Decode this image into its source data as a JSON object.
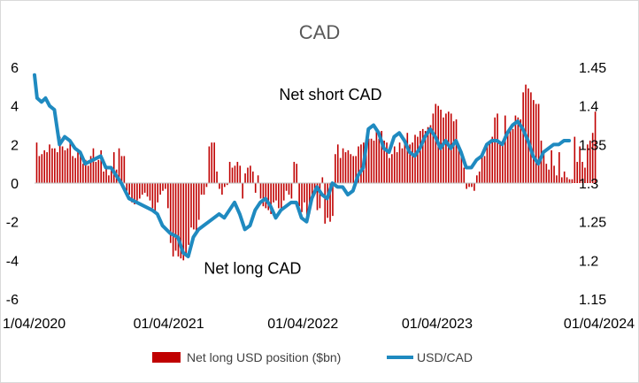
{
  "chart_data": {
    "type": "bar+line",
    "title": "CAD",
    "colors": {
      "bars": "#c00000",
      "line": "#1f8ac0",
      "zero_line": "#bfbfbf",
      "title": "#595959"
    },
    "left_axis": {
      "ylim": [
        -6,
        6
      ],
      "ticks": [
        "6",
        "4",
        "2",
        "0",
        "-2",
        "-4",
        "-6"
      ],
      "tick_values": [
        6,
        4,
        2,
        0,
        -2,
        -4,
        -6
      ]
    },
    "right_axis": {
      "ylim": [
        1.15,
        1.45
      ],
      "ticks": [
        "1.45",
        "1.4",
        "1.35",
        "1.3",
        "1.25",
        "1.2",
        "1.15"
      ],
      "tick_values": [
        1.45,
        1.4,
        1.35,
        1.3,
        1.25,
        1.2,
        1.15
      ]
    },
    "x_axis": {
      "xlim": [
        "2020-04-01",
        "2024-04-01"
      ],
      "tick_labels": [
        "1/04/2020",
        "01/04/2021",
        "01/04/2022",
        "01/04/2023",
        "01/04/2024"
      ],
      "tick_dates": [
        "2020-04-01",
        "2021-04-01",
        "2022-04-01",
        "2023-04-01",
        "2024-04-01"
      ]
    },
    "annotations": [
      {
        "text": "Net short CAD",
        "date": "2022-06-15",
        "value": 4.3
      },
      {
        "text": "Net long CAD",
        "date": "2021-11-15",
        "value": -4.7
      }
    ],
    "legend": {
      "placement": "bottom",
      "entries": [
        "Net long USD position ($bn)",
        "USD/CAD"
      ]
    },
    "series": [
      {
        "name": "Net long USD position ($bn)",
        "type": "bar",
        "axis": "left",
        "start_date": "2020-04-07",
        "frequency_days": 7,
        "values": [
          2.1,
          1.4,
          1.5,
          1.7,
          1.6,
          2.0,
          1.8,
          1.8,
          1.6,
          2.4,
          1.9,
          1.7,
          1.8,
          2.2,
          1.4,
          1.3,
          1.6,
          1.5,
          1.0,
          1.2,
          0.9,
          1.4,
          1.8,
          1.1,
          1.2,
          1.7,
          0.6,
          0.9,
          0.4,
          0.7,
          1.6,
          0.7,
          1.8,
          1.4,
          1.4,
          -0.4,
          -0.6,
          -1.0,
          -1.1,
          -0.9,
          -0.8,
          -0.6,
          -0.5,
          -0.7,
          -0.9,
          -1.3,
          -1.5,
          -1.0,
          -0.6,
          -0.4,
          -0.3,
          -1.3,
          -3.1,
          -3.8,
          -3.5,
          -3.8,
          -3.9,
          -4.0,
          -3.7,
          -3.2,
          -2.3,
          -2.4,
          -2.5,
          -1.9,
          -0.6,
          -0.6,
          -0.2,
          1.9,
          2.1,
          2.1,
          0.6,
          -0.3,
          -0.6,
          -0.2,
          -0.1,
          1.1,
          0.8,
          0.9,
          1.1,
          0.9,
          -0.8,
          0.5,
          0.8,
          0.9,
          0.6,
          -0.5,
          0.4,
          -0.8,
          -1.2,
          -1.3,
          -1.4,
          -1.6,
          -1.0,
          -0.9,
          -1.3,
          -1.4,
          -0.9,
          -0.4,
          -0.6,
          -0.8,
          1.1,
          1.0,
          -1.2,
          -1.5,
          -1.0,
          -1.8,
          -1.6,
          -0.8,
          -0.3,
          -1.4,
          -1.3,
          0.3,
          -2.1,
          -1.8,
          -2.0,
          -1.7,
          1.5,
          2.0,
          1.3,
          1.8,
          1.6,
          1.7,
          1.5,
          1.4,
          1.4,
          1.9,
          2.0,
          2.1,
          1.8,
          2.3,
          2.3,
          2.2,
          2.8,
          2.3,
          2.7,
          2.2,
          2.1,
          1.3,
          1.5,
          1.9,
          1.6,
          2.1,
          1.8,
          2.3,
          2.6,
          2.0,
          2.1,
          2.5,
          2.4,
          2.7,
          2.8,
          2.7,
          2.9,
          3.0,
          3.6,
          4.1,
          4.0,
          3.8,
          3.4,
          3.6,
          3.7,
          3.6,
          3.2,
          3.3,
          1.8,
          1.4,
          0.8,
          -0.3,
          -0.2,
          -0.2,
          -0.4,
          0.4,
          0.6,
          1.4,
          1.4,
          2.1,
          2.1,
          2.4,
          3.4,
          3.6,
          2.0,
          2.2,
          3.5,
          2.5,
          2.8,
          2.8,
          3.5,
          3.4,
          3.3,
          4.7,
          5.1,
          4.9,
          4.7,
          4.3,
          4.1,
          4.1,
          2.2,
          1.7,
          1.0,
          0.7,
          1.7,
          0.9,
          0.4,
          1.6,
          0.3,
          0.6,
          0.3,
          0.2,
          0.2,
          2.4,
          1.1,
          1.9,
          1.1,
          0.8,
          2.0,
          2.2,
          2.6,
          3.7
        ]
      },
      {
        "name": "USD/CAD",
        "type": "line",
        "axis": "right",
        "points": [
          [
            "2020-04-01",
            1.44
          ],
          [
            "2020-04-08",
            1.41
          ],
          [
            "2020-04-20",
            1.405
          ],
          [
            "2020-05-01",
            1.41
          ],
          [
            "2020-05-12",
            1.4
          ],
          [
            "2020-05-25",
            1.395
          ],
          [
            "2020-06-08",
            1.35
          ],
          [
            "2020-06-22",
            1.36
          ],
          [
            "2020-07-06",
            1.355
          ],
          [
            "2020-07-20",
            1.345
          ],
          [
            "2020-08-03",
            1.34
          ],
          [
            "2020-08-17",
            1.325
          ],
          [
            "2020-09-07",
            1.33
          ],
          [
            "2020-09-28",
            1.335
          ],
          [
            "2020-10-12",
            1.32
          ],
          [
            "2020-10-26",
            1.32
          ],
          [
            "2020-11-09",
            1.31
          ],
          [
            "2020-11-23",
            1.3
          ],
          [
            "2020-12-14",
            1.28
          ],
          [
            "2021-01-04",
            1.275
          ],
          [
            "2021-01-25",
            1.27
          ],
          [
            "2021-02-15",
            1.265
          ],
          [
            "2021-03-01",
            1.26
          ],
          [
            "2021-03-15",
            1.245
          ],
          [
            "2021-04-05",
            1.235
          ],
          [
            "2021-04-26",
            1.23
          ],
          [
            "2021-05-10",
            1.21
          ],
          [
            "2021-05-24",
            1.205
          ],
          [
            "2021-06-07",
            1.23
          ],
          [
            "2021-06-21",
            1.24
          ],
          [
            "2021-07-05",
            1.245
          ],
          [
            "2021-07-19",
            1.25
          ],
          [
            "2021-08-02",
            1.255
          ],
          [
            "2021-08-16",
            1.26
          ],
          [
            "2021-08-30",
            1.255
          ],
          [
            "2021-09-13",
            1.265
          ],
          [
            "2021-09-27",
            1.275
          ],
          [
            "2021-10-11",
            1.26
          ],
          [
            "2021-10-25",
            1.24
          ],
          [
            "2021-11-08",
            1.245
          ],
          [
            "2021-11-22",
            1.265
          ],
          [
            "2021-12-06",
            1.275
          ],
          [
            "2021-12-20",
            1.28
          ],
          [
            "2022-01-03",
            1.27
          ],
          [
            "2022-01-17",
            1.255
          ],
          [
            "2022-01-31",
            1.265
          ],
          [
            "2022-02-14",
            1.27
          ],
          [
            "2022-02-28",
            1.275
          ],
          [
            "2022-03-14",
            1.275
          ],
          [
            "2022-03-28",
            1.255
          ],
          [
            "2022-04-11",
            1.25
          ],
          [
            "2022-04-25",
            1.28
          ],
          [
            "2022-05-09",
            1.295
          ],
          [
            "2022-05-23",
            1.285
          ],
          [
            "2022-06-06",
            1.28
          ],
          [
            "2022-06-20",
            1.3
          ],
          [
            "2022-07-04",
            1.295
          ],
          [
            "2022-07-18",
            1.295
          ],
          [
            "2022-08-01",
            1.285
          ],
          [
            "2022-08-15",
            1.29
          ],
          [
            "2022-08-29",
            1.31
          ],
          [
            "2022-09-12",
            1.32
          ],
          [
            "2022-09-26",
            1.37
          ],
          [
            "2022-10-10",
            1.375
          ],
          [
            "2022-10-24",
            1.365
          ],
          [
            "2022-11-07",
            1.345
          ],
          [
            "2022-11-21",
            1.34
          ],
          [
            "2022-12-05",
            1.36
          ],
          [
            "2022-12-19",
            1.365
          ],
          [
            "2023-01-02",
            1.355
          ],
          [
            "2023-01-16",
            1.34
          ],
          [
            "2023-01-30",
            1.335
          ],
          [
            "2023-02-13",
            1.345
          ],
          [
            "2023-02-27",
            1.36
          ],
          [
            "2023-03-13",
            1.37
          ],
          [
            "2023-03-27",
            1.36
          ],
          [
            "2023-04-10",
            1.345
          ],
          [
            "2023-04-24",
            1.355
          ],
          [
            "2023-05-08",
            1.345
          ],
          [
            "2023-05-22",
            1.355
          ],
          [
            "2023-06-05",
            1.34
          ],
          [
            "2023-06-19",
            1.32
          ],
          [
            "2023-07-03",
            1.32
          ],
          [
            "2023-07-17",
            1.33
          ],
          [
            "2023-07-31",
            1.335
          ],
          [
            "2023-08-14",
            1.35
          ],
          [
            "2023-08-28",
            1.355
          ],
          [
            "2023-09-11",
            1.355
          ],
          [
            "2023-09-25",
            1.35
          ],
          [
            "2023-10-09",
            1.365
          ],
          [
            "2023-10-23",
            1.375
          ],
          [
            "2023-11-06",
            1.38
          ],
          [
            "2023-11-20",
            1.37
          ],
          [
            "2023-12-04",
            1.355
          ],
          [
            "2023-12-18",
            1.335
          ],
          [
            "2024-01-01",
            1.325
          ],
          [
            "2024-01-15",
            1.34
          ],
          [
            "2024-01-29",
            1.345
          ],
          [
            "2024-02-12",
            1.35
          ],
          [
            "2024-02-26",
            1.35
          ],
          [
            "2024-03-11",
            1.355
          ],
          [
            "2024-03-25",
            1.355
          ]
        ]
      }
    ]
  }
}
